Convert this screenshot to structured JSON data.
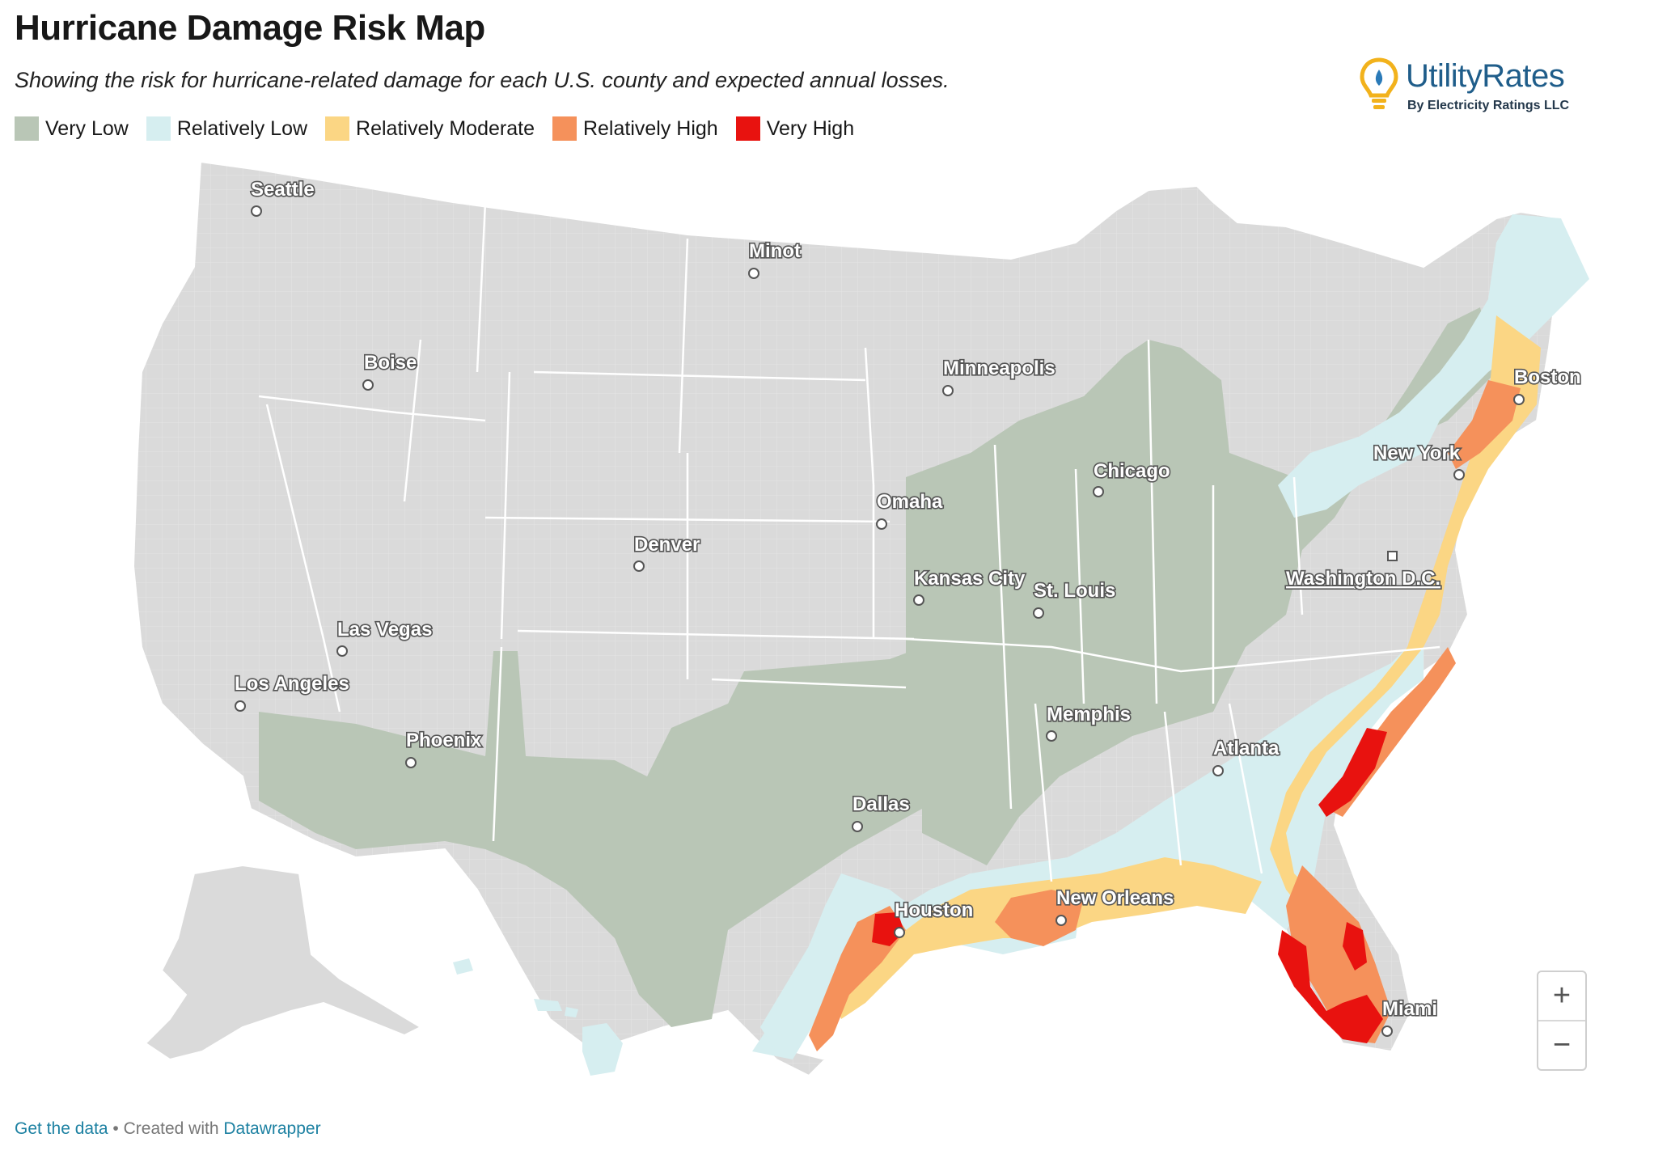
{
  "header": {
    "title": "Hurricane Damage Risk Map",
    "subtitle": "Showing the risk for hurricane-related damage for each U.S. county and expected annual losses."
  },
  "legend": [
    {
      "label": "Very Low",
      "color": "#b9c6b6"
    },
    {
      "label": "Relatively Low",
      "color": "#d6eef0"
    },
    {
      "label": "Relatively Moderate",
      "color": "#fbd684"
    },
    {
      "label": "Relatively High",
      "color": "#f5915b"
    },
    {
      "label": "Very High",
      "color": "#e8120f"
    }
  ],
  "colors": {
    "no_data": "#dadada",
    "border": "#ffffff",
    "label_text": "#ffffff",
    "label_outline": "#555555",
    "link": "#1d81a2"
  },
  "logo": {
    "name": "UtilityRates",
    "tagline": "By Electricity Ratings LLC",
    "icon": "lightbulb-icon"
  },
  "cities": [
    {
      "name": "Seattle"
    },
    {
      "name": "Minot"
    },
    {
      "name": "Boise"
    },
    {
      "name": "Minneapolis"
    },
    {
      "name": "Boston"
    },
    {
      "name": "New York"
    },
    {
      "name": "Chicago"
    },
    {
      "name": "Omaha"
    },
    {
      "name": "Denver"
    },
    {
      "name": "Kansas City"
    },
    {
      "name": "St. Louis"
    },
    {
      "name": "Washington D.C."
    },
    {
      "name": "Las Vegas"
    },
    {
      "name": "Los Angeles"
    },
    {
      "name": "Memphis"
    },
    {
      "name": "Phoenix"
    },
    {
      "name": "Atlanta"
    },
    {
      "name": "Dallas"
    },
    {
      "name": "Houston"
    },
    {
      "name": "New Orleans"
    },
    {
      "name": "Miami"
    }
  ],
  "zoom": {
    "in_label": "+",
    "out_label": "−"
  },
  "footer": {
    "get_data": "Get the data",
    "separator": " • Created with ",
    "tool": "Datawrapper"
  }
}
